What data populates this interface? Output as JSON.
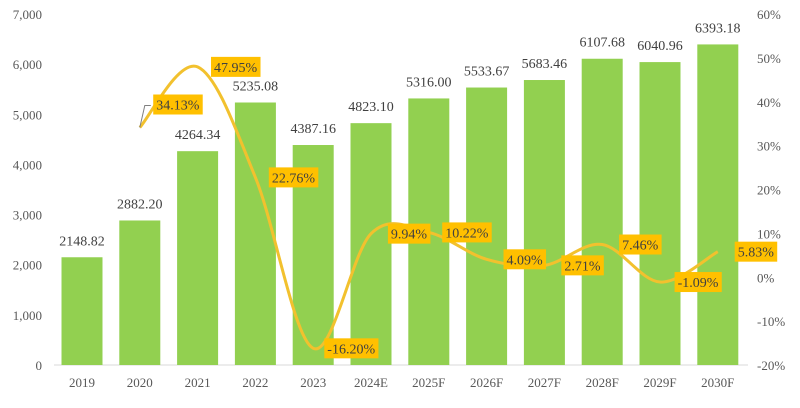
{
  "chart_data": {
    "type": "bar+line",
    "categories": [
      "2019",
      "2020",
      "2021",
      "2022",
      "2023",
      "2024E",
      "2025F",
      "2026F",
      "2027F",
      "2028F",
      "2029F",
      "2030F"
    ],
    "series": [
      {
        "type": "bar",
        "axis": "left",
        "color": "#92D050",
        "values": [
          2148.82,
          2882.2,
          4264.34,
          5235.08,
          4387.16,
          4823.1,
          5316.0,
          5533.67,
          5683.46,
          6107.68,
          6040.96,
          6393.18
        ],
        "labels": [
          "2148.82",
          "2882.20",
          "4264.34",
          "5235.08",
          "4387.16",
          "4823.10",
          "5316.00",
          "5533.67",
          "5683.46",
          "6107.68",
          "6040.96",
          "6393.18"
        ]
      },
      {
        "type": "line",
        "axis": "right",
        "color": "#F2C12E",
        "label_bg": "#FFC000",
        "smooth": true,
        "values": [
          null,
          34.13,
          47.95,
          22.76,
          -16.2,
          9.94,
          10.22,
          4.09,
          2.71,
          7.46,
          -1.09,
          5.83
        ],
        "labels": [
          "",
          "34.13%",
          "47.95%",
          "22.76%",
          "-16.20%",
          "9.94%",
          "10.22%",
          "4.09%",
          "2.71%",
          "7.46%",
          "-1.09%",
          "5.83%"
        ]
      }
    ],
    "y_left": {
      "lim": [
        0,
        7000
      ],
      "ticks": [
        "0",
        "1,000",
        "2,000",
        "3,000",
        "4,000",
        "5,000",
        "6,000",
        "7,000"
      ]
    },
    "y_right": {
      "lim": [
        -20,
        60
      ],
      "ticks": [
        "-20%",
        "-10%",
        "0%",
        "10%",
        "20%",
        "30%",
        "40%",
        "50%",
        "60%"
      ]
    },
    "grid": false,
    "legend": "none"
  }
}
